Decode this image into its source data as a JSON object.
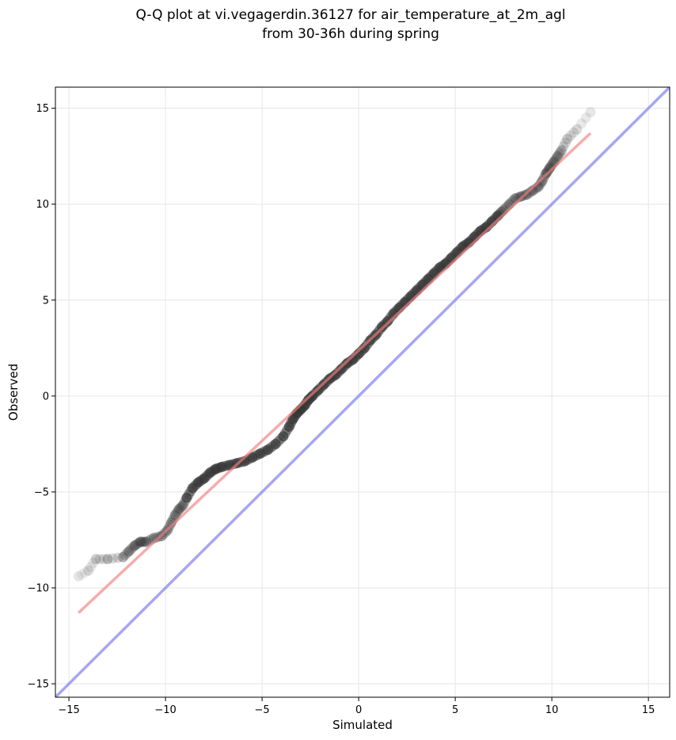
{
  "chart_data": {
    "type": "scatter",
    "title": "Q-Q plot at vi.vegagerdin.36127 for air_temperature_at_2m_agl",
    "subtitle": "from 30-36h during spring",
    "xlabel": "Simulated",
    "ylabel": "Observed",
    "xlim": [
      -15.7,
      16.1
    ],
    "ylim": [
      -15.7,
      16.1
    ],
    "xticks": [
      -15,
      -10,
      -5,
      0,
      5,
      10,
      15
    ],
    "yticks": [
      -15,
      -10,
      -5,
      0,
      5,
      10,
      15
    ],
    "xtick_labels": [
      "−15",
      "−10",
      "−5",
      "0",
      "5",
      "10",
      "15"
    ],
    "ytick_labels": [
      "−15",
      "−10",
      "−5",
      "0",
      "5",
      "10",
      "15"
    ],
    "grid": true,
    "colors": {
      "points": "#333333",
      "fit_line": "#f08080",
      "identity_line": "#8888ee"
    },
    "identity_line": {
      "x": [
        -15.7,
        16.1
      ],
      "y": [
        -15.7,
        16.1
      ]
    },
    "fit_line": {
      "x": [
        -14.5,
        12.0
      ],
      "y": [
        -11.3,
        13.7
      ]
    },
    "quantiles": {
      "x": [
        -14.5,
        -14.0,
        -13.6,
        -13.0,
        -12.2,
        -11.9,
        -11.6,
        -11.3,
        -11.0,
        -10.6,
        -10.2,
        -9.9,
        -9.7,
        -9.5,
        -9.3,
        -9.1,
        -8.9,
        -8.6,
        -8.3,
        -8.0,
        -7.7,
        -7.4,
        -7.1,
        -6.7,
        -6.3,
        -5.9,
        -5.5,
        -5.1,
        -4.7,
        -4.3,
        -3.9,
        -3.6,
        -3.4,
        -3.2,
        -3.0,
        -2.8,
        -2.6,
        -2.4,
        -2.1,
        -1.8,
        -1.5,
        -1.2,
        -0.9,
        -0.6,
        -0.3,
        0.0,
        0.3,
        0.6,
        0.9,
        1.2,
        1.5,
        1.8,
        2.1,
        2.4,
        2.7,
        3.0,
        3.3,
        3.6,
        3.9,
        4.2,
        4.5,
        4.8,
        5.1,
        5.4,
        5.7,
        6.0,
        6.3,
        6.6,
        6.9,
        7.2,
        7.5,
        7.8,
        8.1,
        8.4,
        8.7,
        9.0,
        9.3,
        9.5,
        9.7,
        9.9,
        10.1,
        10.3,
        10.5,
        10.8,
        11.3,
        12.0
      ],
      "y": [
        -9.4,
        -9.1,
        -8.5,
        -8.5,
        -8.4,
        -8.1,
        -7.8,
        -7.6,
        -7.6,
        -7.4,
        -7.3,
        -7.0,
        -6.6,
        -6.2,
        -5.9,
        -5.7,
        -5.3,
        -4.8,
        -4.5,
        -4.3,
        -4.0,
        -3.8,
        -3.7,
        -3.6,
        -3.5,
        -3.4,
        -3.2,
        -3.0,
        -2.8,
        -2.5,
        -2.1,
        -1.6,
        -1.2,
        -0.9,
        -0.7,
        -0.5,
        -0.2,
        0.0,
        0.3,
        0.6,
        0.9,
        1.1,
        1.4,
        1.7,
        1.9,
        2.2,
        2.5,
        2.9,
        3.2,
        3.6,
        3.9,
        4.3,
        4.6,
        4.9,
        5.2,
        5.5,
        5.8,
        6.1,
        6.4,
        6.7,
        6.9,
        7.2,
        7.5,
        7.8,
        8.0,
        8.3,
        8.6,
        8.8,
        9.1,
        9.4,
        9.7,
        10.0,
        10.3,
        10.4,
        10.5,
        10.7,
        10.9,
        11.2,
        11.6,
        11.9,
        12.2,
        12.5,
        12.8,
        13.4,
        13.9,
        14.8
      ]
    }
  }
}
